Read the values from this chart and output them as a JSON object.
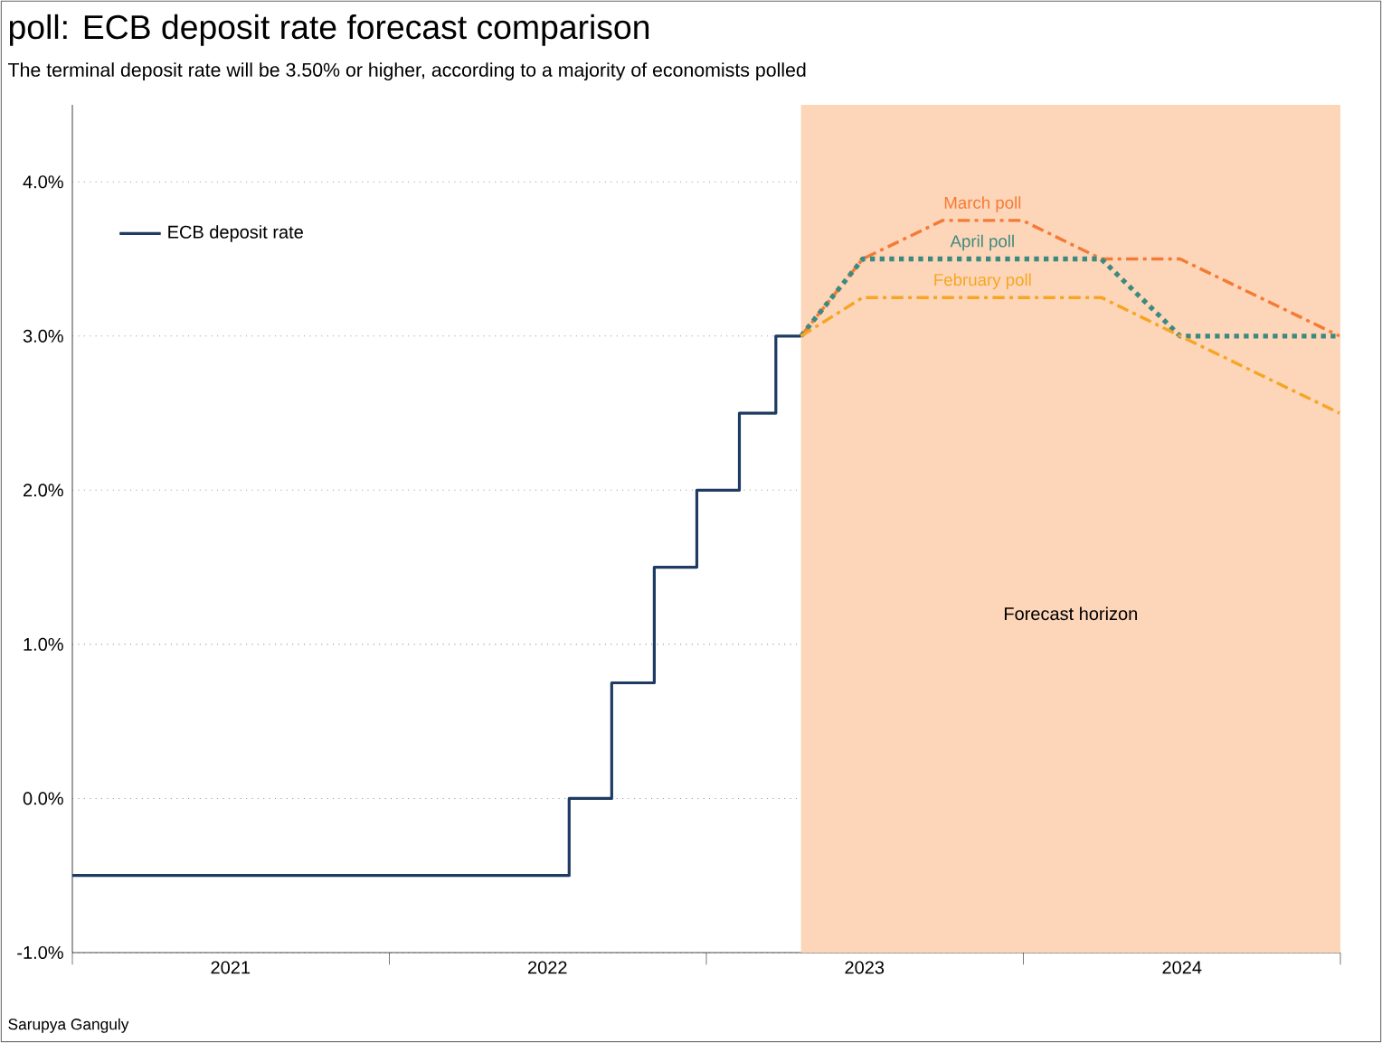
{
  "chart_data": {
    "type": "line",
    "title": "poll: ECB deposit rate forecast comparison",
    "subtitle": "The terminal deposit rate will be 3.50% or higher, according to a majority of economists polled",
    "annotations": [
      "Sarupya Ganguly"
    ],
    "xlim": [
      "2021-01-01",
      "2025-01-01"
    ],
    "xticks": [
      {
        "value": "2021-01-01",
        "label": null
      },
      {
        "value": "2021-07-02",
        "label": "2021"
      },
      {
        "value": "2022-01-01",
        "label": null
      },
      {
        "value": "2022-07-02",
        "label": "2022"
      },
      {
        "value": "2023-01-01",
        "label": null
      },
      {
        "value": "2023-07-02",
        "label": "2023"
      },
      {
        "value": "2024-01-01",
        "label": null
      },
      {
        "value": "2024-07-02",
        "label": "2024"
      },
      {
        "value": "2025-01-01",
        "label": null
      }
    ],
    "ylim": [
      -1,
      4.5
    ],
    "yticks": [
      {
        "value": -1,
        "label": "-1.0%"
      },
      {
        "value": 0,
        "label": "0.0%"
      },
      {
        "value": 1,
        "label": "1.0%"
      },
      {
        "value": 2,
        "label": "2.0%"
      },
      {
        "value": 3,
        "label": "3.0%"
      },
      {
        "value": 4,
        "label": "4.0%"
      }
    ],
    "grid": "y",
    "legend": "top left",
    "bands": [
      {
        "axis": "x",
        "from": "2023-04-20",
        "to": "2025-01-01",
        "label": "Forecast horizon",
        "color": "#fdd5b8"
      }
    ],
    "series": [
      {
        "name": "ECB deposit rate",
        "type": "step",
        "color": "#1f3b63",
        "line_style": "solid",
        "x": [
          "2021-01-01",
          "2022-07-27",
          "2022-09-14",
          "2022-11-02",
          "2022-12-21",
          "2023-02-08",
          "2023-03-22",
          "2023-04-20"
        ],
        "values": [
          -0.5,
          0,
          0.75,
          1.5,
          2.0,
          2.5,
          3.0,
          3.0
        ]
      },
      {
        "name": "March poll",
        "color": "#f47b36",
        "line_style": "dashdot",
        "x": [
          "2023-04-20",
          "2023-06-30",
          "2023-09-30",
          "2023-12-31",
          "2024-03-31",
          "2024-06-30",
          "2024-09-30",
          "2024-12-31"
        ],
        "values": [
          3.0,
          3.5,
          3.75,
          3.75,
          3.5,
          3.5,
          3.25,
          3.0
        ]
      },
      {
        "name": "April poll",
        "color": "#3c8a7f",
        "line_style": "dotted",
        "x": [
          "2023-04-20",
          "2023-06-30",
          "2023-09-30",
          "2023-12-31",
          "2024-03-31",
          "2024-06-30",
          "2024-09-30",
          "2024-12-31"
        ],
        "values": [
          3.0,
          3.5,
          3.5,
          3.5,
          3.5,
          3.0,
          3.0,
          3.0
        ]
      },
      {
        "name": "February poll",
        "color": "#f5a623",
        "line_style": "dashdot",
        "x": [
          "2023-04-20",
          "2023-06-30",
          "2023-09-30",
          "2023-12-31",
          "2024-03-31",
          "2024-06-30",
          "2024-09-30",
          "2024-12-31"
        ],
        "values": [
          3.0,
          3.25,
          3.25,
          3.25,
          3.25,
          3.0,
          2.75,
          2.5
        ]
      }
    ]
  }
}
